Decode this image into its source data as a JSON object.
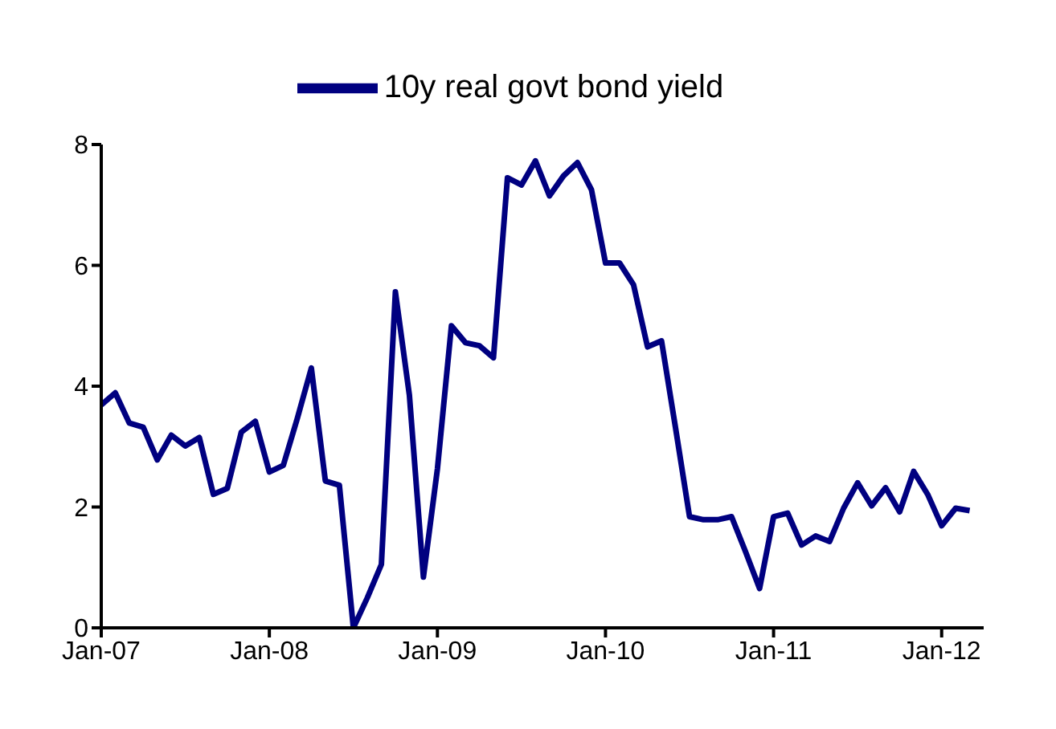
{
  "chart_data": {
    "type": "line",
    "x": [
      "2007-01",
      "2007-02",
      "2007-03",
      "2007-04",
      "2007-05",
      "2007-06",
      "2007-07",
      "2007-08",
      "2007-09",
      "2007-10",
      "2007-11",
      "2007-12",
      "2008-01",
      "2008-02",
      "2008-03",
      "2008-04",
      "2008-05",
      "2008-06",
      "2008-07",
      "2008-08",
      "2008-09",
      "2008-10",
      "2008-11",
      "2008-12",
      "2009-01",
      "2009-02",
      "2009-03",
      "2009-04",
      "2009-05",
      "2009-06",
      "2009-07",
      "2009-08",
      "2009-09",
      "2009-10",
      "2009-11",
      "2009-12",
      "2010-01",
      "2010-02",
      "2010-03",
      "2010-04",
      "2010-05",
      "2010-06",
      "2010-07",
      "2010-08",
      "2010-09",
      "2010-10",
      "2010-11",
      "2010-12",
      "2011-01",
      "2011-02",
      "2011-03",
      "2011-04",
      "2011-05",
      "2011-06",
      "2011-07",
      "2011-08",
      "2011-09",
      "2011-10",
      "2011-11",
      "2011-12",
      "2012-01",
      "2012-02",
      "2012-03"
    ],
    "series": [
      {
        "name": "10y real govt bond yield",
        "color": "#000080",
        "values": [
          3.69,
          3.89,
          3.39,
          3.32,
          2.78,
          3.19,
          3.01,
          3.15,
          2.21,
          2.31,
          3.24,
          3.42,
          2.58,
          2.69,
          3.47,
          4.3,
          2.43,
          2.36,
          0.0,
          0.5,
          1.05,
          5.56,
          3.85,
          0.84,
          2.63,
          5.0,
          4.72,
          4.67,
          4.47,
          7.45,
          7.33,
          7.73,
          7.15,
          7.48,
          7.7,
          7.25,
          6.04,
          6.04,
          5.68,
          4.65,
          4.75,
          3.31,
          1.84,
          1.79,
          1.79,
          1.84,
          1.26,
          0.65,
          1.84,
          1.9,
          1.37,
          1.52,
          1.43,
          1.98,
          2.4,
          2.02,
          2.32,
          1.92,
          2.59,
          2.21,
          1.69,
          1.98,
          1.94
        ]
      }
    ],
    "xlim": [
      "2007-01",
      "2012-04"
    ],
    "xticks": [
      {
        "value": "2007-01",
        "label": "Jan-07"
      },
      {
        "value": "2008-01",
        "label": "Jan-08"
      },
      {
        "value": "2009-01",
        "label": "Jan-09"
      },
      {
        "value": "2010-01",
        "label": "Jan-10"
      },
      {
        "value": "2011-01",
        "label": "Jan-11"
      },
      {
        "value": "2012-01",
        "label": "Jan-12"
      }
    ],
    "ylim": [
      0,
      8
    ],
    "yticks": [
      0,
      2,
      4,
      6,
      8
    ],
    "legend": "top",
    "marker": "none",
    "line_style": "solid",
    "grid": false
  }
}
